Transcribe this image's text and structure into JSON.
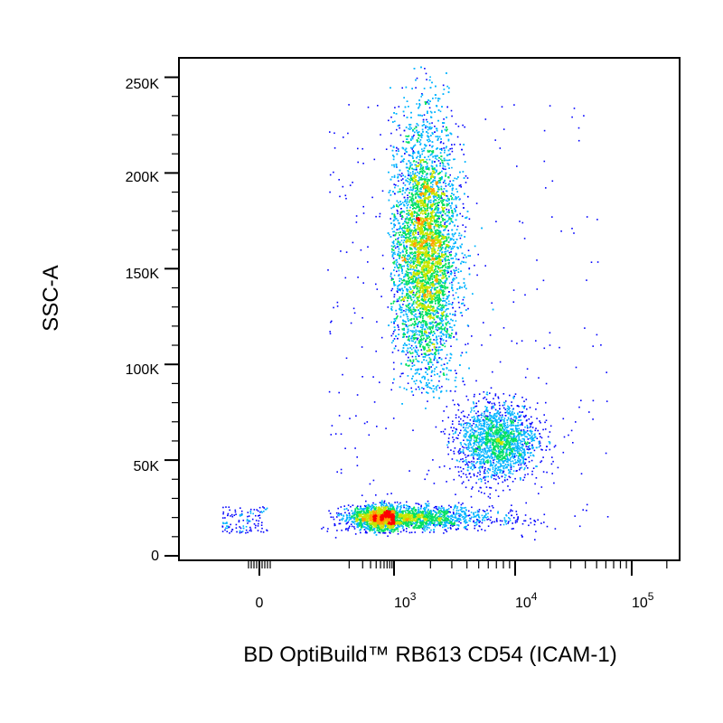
{
  "chart_data": {
    "type": "scatter",
    "style": "flow cytometry density dot plot",
    "xlabel": "BD OptiBuild™ RB613 CD54 (ICAM-1)",
    "ylabel": "SSC-A",
    "x_scale": "biexponential (logicle)",
    "x_ticks": [
      {
        "base": "0",
        "exp": ""
      },
      {
        "base": "10",
        "exp": "3"
      },
      {
        "base": "10",
        "exp": "4"
      },
      {
        "base": "10",
        "exp": "5"
      }
    ],
    "y_ticks": [
      "0",
      "50K",
      "100K",
      "150K",
      "200K",
      "250K"
    ],
    "ylim": [
      0,
      262144
    ],
    "grid": false,
    "density_colors": [
      "#0000ff",
      "#00b4ff",
      "#00e060",
      "#c8e600",
      "#ffa000",
      "#ff0000"
    ],
    "populations": [
      {
        "x_center": 1800,
        "y_center": 160000,
        "x_spread_decades": 0.13,
        "y_spread": 34000,
        "y_range": [
          85000,
          256000
        ],
        "count": 9000
      },
      {
        "x_center": 7000,
        "y_center": 60000,
        "x_spread_decades": 0.17,
        "y_spread": 10000,
        "y_range": [
          30000,
          90000
        ],
        "count": 1900
      },
      {
        "x_center": 800,
        "y_center": 20000,
        "x_spread_decades": 0.45,
        "y_spread": 3200,
        "y_range": [
          12000,
          30000
        ],
        "count": 2800
      }
    ]
  }
}
